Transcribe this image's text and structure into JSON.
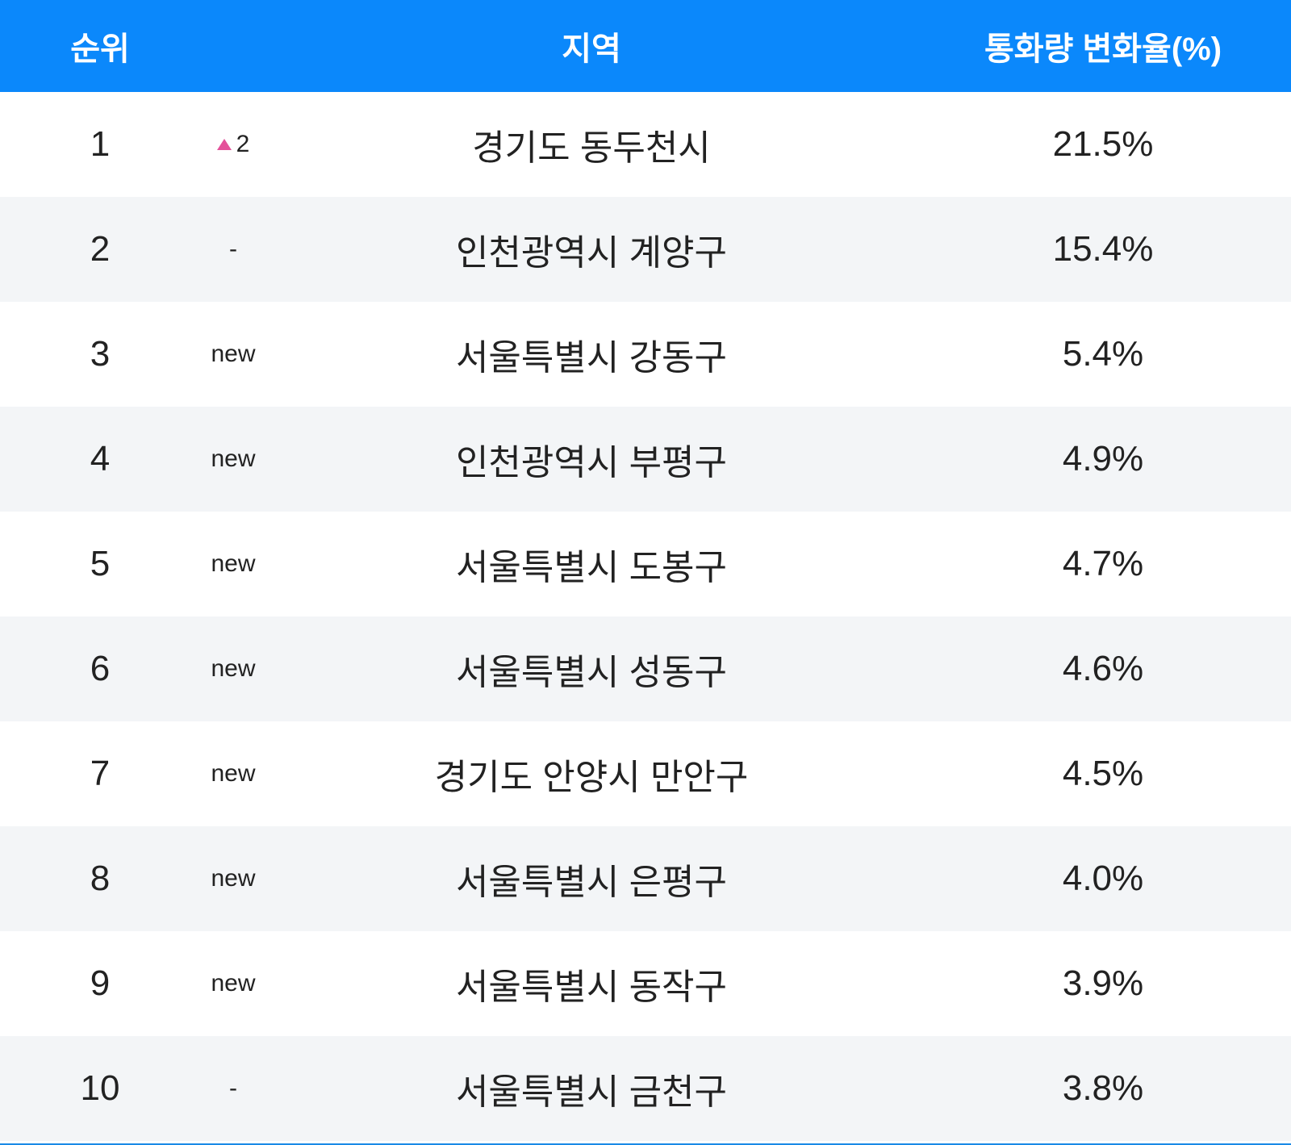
{
  "table": {
    "header": [
      "순위",
      "지역",
      "통화량 변화율(%)"
    ],
    "rows": [
      {
        "rank": "1",
        "change": "2",
        "region": "경기도 동두천시",
        "value": "21.5%"
      },
      {
        "rank": "2",
        "change": "-",
        "region": "인천광역시 계양구",
        "value": "15.4%"
      },
      {
        "rank": "3",
        "change": "new",
        "region": "서울특별시 강동구",
        "value": "5.4%"
      },
      {
        "rank": "4",
        "change": "new",
        "region": "인천광역시 부평구",
        "value": "4.9%"
      },
      {
        "rank": "5",
        "change": "new",
        "region": "서울특별시 도봉구",
        "value": "4.7%"
      },
      {
        "rank": "6",
        "change": "new",
        "region": "서울특별시 성동구",
        "value": "4.6%"
      },
      {
        "rank": "7",
        "change": "new",
        "region": "경기도 안양시 만안구",
        "value": "4.5%"
      },
      {
        "rank": "8",
        "change": "new",
        "region": "서울특별시 은평구",
        "value": "4.0%"
      },
      {
        "rank": "9",
        "change": "new",
        "region": "서울특별시 동작구",
        "value": "3.9%"
      },
      {
        "rank": "10",
        "change": "-",
        "region": "서울특별시 금천구",
        "value": "3.8%"
      }
    ]
  }
}
